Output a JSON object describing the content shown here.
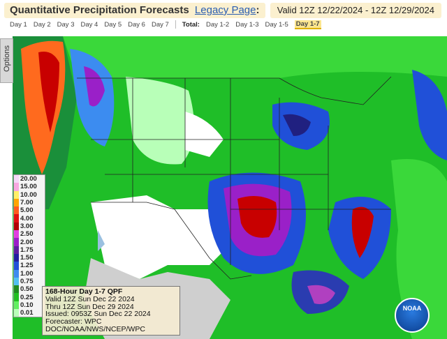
{
  "header": {
    "title": "Quantitative Precipitation Forecasts",
    "link": "Legacy Page",
    "separator": ":",
    "valid": "Valid 12Z 12/22/2024 - 12Z 12/29/2024"
  },
  "tabs": {
    "days": [
      "Day 1",
      "Day 2",
      "Day 3",
      "Day 4",
      "Day 5",
      "Day 6",
      "Day 7"
    ],
    "total_label": "Total:",
    "totals": [
      "Day 1-2",
      "Day 1-3",
      "Day 1-5",
      "Day 1-7"
    ],
    "active": "Day 1-7"
  },
  "options": "Options",
  "legend": [
    {
      "label": "20.00",
      "color": "#f4d8f8"
    },
    {
      "label": "15.00",
      "color": "#f7a8e0"
    },
    {
      "label": "10.00",
      "color": "#fff066"
    },
    {
      "label": "7.00",
      "color": "#ffa500"
    },
    {
      "label": "5.00",
      "color": "#ff5a1e"
    },
    {
      "label": "4.00",
      "color": "#e01010"
    },
    {
      "label": "3.00",
      "color": "#b00000"
    },
    {
      "label": "2.50",
      "color": "#e040e0"
    },
    {
      "label": "2.00",
      "color": "#9a20c8"
    },
    {
      "label": "1.75",
      "color": "#5a20a0"
    },
    {
      "label": "1.50",
      "color": "#2020a0"
    },
    {
      "label": "1.25",
      "color": "#2050d8"
    },
    {
      "label": "1.00",
      "color": "#3c8cf0"
    },
    {
      "label": "0.75",
      "color": "#50c0f0"
    },
    {
      "label": "0.50",
      "color": "#1e8c1e"
    },
    {
      "label": "0.25",
      "color": "#20c020"
    },
    {
      "label": "0.10",
      "color": "#60f060"
    },
    {
      "label": "0.01",
      "color": "#b8ffb8"
    }
  ],
  "info": [
    "168-Hour Day 1-7 QPF",
    "Valid 12Z Sun Dec 22 2024",
    "Thru 12Z Sun Dec 29 2024",
    "Issued: 0953Z Sun Dec 22 2024",
    "Forecaster: WPC",
    "DOC/NOAA/NWS/NCEP/WPC"
  ],
  "logo": "NOAA"
}
